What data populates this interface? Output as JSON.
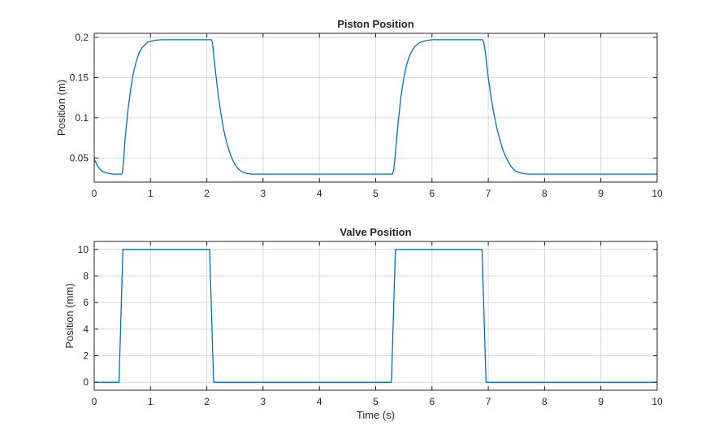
{
  "chart_data": [
    {
      "type": "line",
      "title": "Piston Position",
      "xlabel": "",
      "ylabel": "Position (m)",
      "xlim": [
        0,
        10
      ],
      "ylim": [
        0.02,
        0.205
      ],
      "x_ticks": [
        0,
        1,
        2,
        3,
        4,
        5,
        6,
        7,
        8,
        9,
        10
      ],
      "y_ticks": [
        0.05,
        0.1,
        0.15,
        0.2
      ],
      "x_tick_labels": [
        "0",
        "1",
        "2",
        "3",
        "4",
        "5",
        "6",
        "7",
        "8",
        "9",
        "10"
      ],
      "y_tick_labels": [
        "0.05",
        "0.1",
        "0.15",
        "0.2"
      ],
      "grid": true,
      "series": [
        {
          "name": "Piston Position",
          "color": "#0072BD",
          "x": [
            0,
            0.05,
            0.1,
            0.15,
            0.2,
            0.25,
            0.3,
            0.35,
            0.4,
            0.45,
            0.48,
            0.5,
            0.52,
            0.55,
            0.6,
            0.65,
            0.7,
            0.75,
            0.8,
            0.85,
            0.9,
            0.95,
            1.0,
            1.05,
            1.1,
            1.2,
            1.3,
            1.5,
            1.7,
            2.0,
            2.08,
            2.1,
            2.12,
            2.15,
            2.2,
            2.25,
            2.3,
            2.35,
            2.4,
            2.45,
            2.5,
            2.55,
            2.6,
            2.65,
            2.7,
            2.8,
            2.9,
            3.0,
            3.5,
            4.0,
            4.5,
            5.0,
            5.3,
            5.32,
            5.35,
            5.4,
            5.45,
            5.5,
            5.55,
            5.6,
            5.65,
            5.7,
            5.75,
            5.8,
            5.85,
            5.9,
            6.0,
            6.1,
            6.3,
            6.6,
            6.9,
            6.92,
            6.95,
            7.0,
            7.05,
            7.1,
            7.15,
            7.2,
            7.25,
            7.3,
            7.35,
            7.4,
            7.45,
            7.5,
            7.6,
            7.7,
            7.8,
            8.0,
            8.5,
            9.0,
            9.5,
            10.0
          ],
          "y": [
            0.049,
            0.041,
            0.036,
            0.033,
            0.032,
            0.031,
            0.0305,
            0.03,
            0.03,
            0.03,
            0.03,
            0.031,
            0.045,
            0.075,
            0.11,
            0.137,
            0.157,
            0.171,
            0.181,
            0.187,
            0.191,
            0.194,
            0.195,
            0.196,
            0.1965,
            0.197,
            0.197,
            0.197,
            0.197,
            0.197,
            0.197,
            0.194,
            0.18,
            0.16,
            0.13,
            0.105,
            0.085,
            0.07,
            0.058,
            0.049,
            0.042,
            0.037,
            0.034,
            0.032,
            0.031,
            0.03,
            0.03,
            0.03,
            0.03,
            0.03,
            0.03,
            0.03,
            0.03,
            0.035,
            0.055,
            0.095,
            0.127,
            0.15,
            0.166,
            0.177,
            0.184,
            0.189,
            0.192,
            0.194,
            0.195,
            0.196,
            0.197,
            0.197,
            0.197,
            0.197,
            0.197,
            0.194,
            0.18,
            0.15,
            0.125,
            0.105,
            0.088,
            0.074,
            0.062,
            0.053,
            0.046,
            0.04,
            0.036,
            0.033,
            0.031,
            0.03,
            0.03,
            0.03,
            0.03,
            0.03,
            0.03,
            0.03
          ]
        }
      ]
    },
    {
      "type": "line",
      "title": "Valve Position",
      "xlabel": "Time (s)",
      "ylabel": "Position (mm)",
      "xlim": [
        0,
        10
      ],
      "ylim": [
        -0.6,
        10.6
      ],
      "x_ticks": [
        0,
        1,
        2,
        3,
        4,
        5,
        6,
        7,
        8,
        9,
        10
      ],
      "y_ticks": [
        0,
        2,
        4,
        6,
        8,
        10
      ],
      "x_tick_labels": [
        "0",
        "1",
        "2",
        "3",
        "4",
        "5",
        "6",
        "7",
        "8",
        "9",
        "10"
      ],
      "y_tick_labels": [
        "0",
        "2",
        "4",
        "6",
        "8",
        "10"
      ],
      "grid": true,
      "series": [
        {
          "name": "Valve Position",
          "color": "#0072BD",
          "x": [
            0,
            0.44,
            0.51,
            2.05,
            2.12,
            5.28,
            5.35,
            6.89,
            6.96,
            10
          ],
          "y": [
            0,
            0,
            10,
            10,
            0,
            0,
            10,
            10,
            0,
            0
          ]
        }
      ]
    }
  ]
}
